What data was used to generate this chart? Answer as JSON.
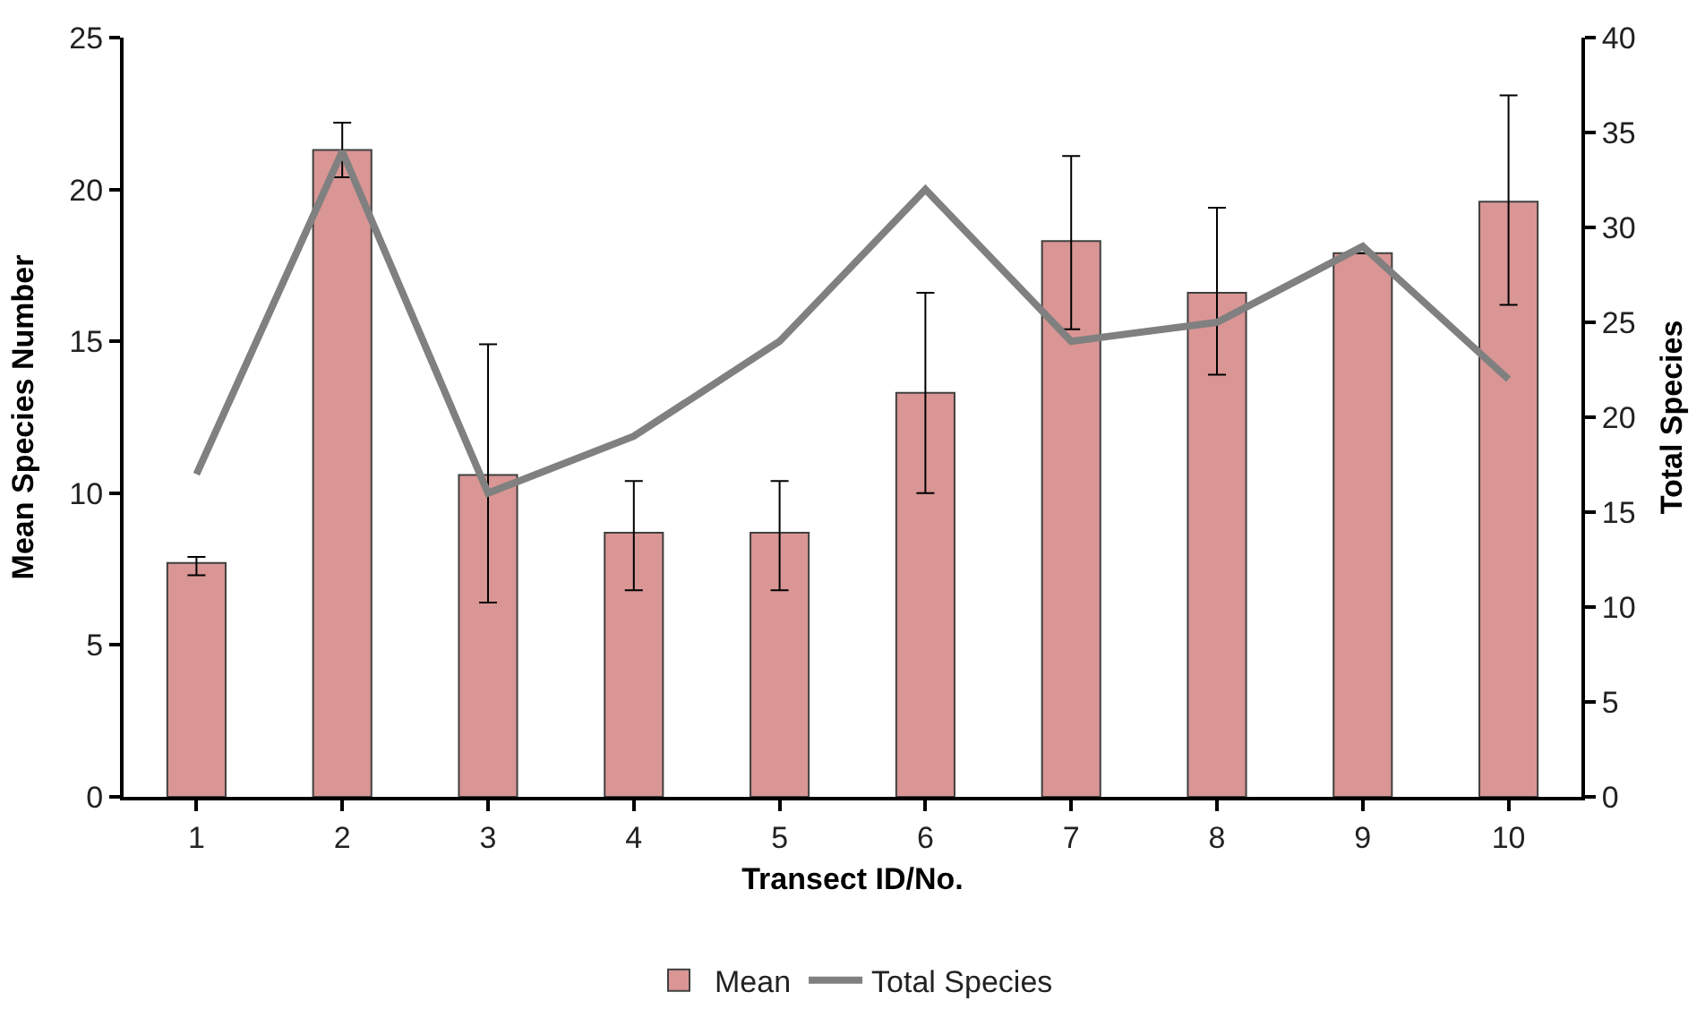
{
  "chart_data": {
    "type": "bar",
    "xlabel": "Transect ID/No.",
    "ylabel": "Mean Species Number",
    "y2label": "Total Species",
    "categories": [
      "1",
      "2",
      "3",
      "4",
      "5",
      "6",
      "7",
      "8",
      "9",
      "10"
    ],
    "series": [
      {
        "name": "Mean",
        "color": "#d99694",
        "values": [
          7.7,
          21.3,
          10.6,
          8.7,
          8.7,
          13.3,
          18.3,
          16.6,
          17.9,
          19.6
        ],
        "errors": [
          [
            7.3,
            7.9
          ],
          [
            20.4,
            22.2
          ],
          [
            6.4,
            14.9
          ],
          [
            6.8,
            10.4
          ],
          [
            6.8,
            10.4
          ],
          [
            10.0,
            16.6
          ],
          [
            15.4,
            21.1
          ],
          [
            13.9,
            19.4
          ],
          null,
          [
            16.2,
            23.1
          ]
        ]
      },
      {
        "name": "Total Species",
        "type": "line",
        "axis": "y2",
        "color": "#808080",
        "values": [
          17,
          34,
          16,
          19,
          24,
          32,
          24,
          25,
          29,
          22
        ]
      }
    ],
    "ylim": [
      0,
      25
    ],
    "yticks": [
      0,
      5,
      10,
      15,
      20,
      25
    ],
    "y2lim": [
      0,
      40
    ],
    "y2ticks": [
      0,
      5,
      10,
      15,
      20,
      25,
      30,
      35,
      40
    ],
    "legend": "bottom",
    "marker": "none",
    "line_style": "solid"
  }
}
